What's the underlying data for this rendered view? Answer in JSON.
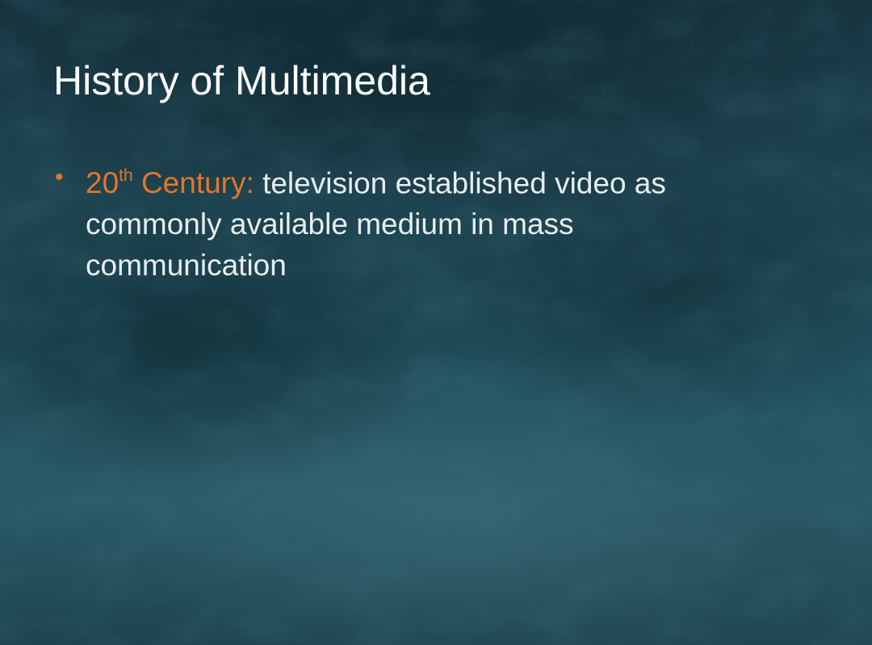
{
  "slide": {
    "title": "History of Multimedia",
    "bullets": [
      {
        "lead_number": "20",
        "lead_superscript": "th",
        "lead_rest": " Century:",
        "body": " television established video as commonly available medium in mass communication"
      }
    ]
  },
  "colors": {
    "background": "#1f4450",
    "title": "#ffffff",
    "body_text": "#e8eef0",
    "accent": "#e2762a"
  },
  "icons": {
    "bullet": "bullet-dot-icon"
  }
}
